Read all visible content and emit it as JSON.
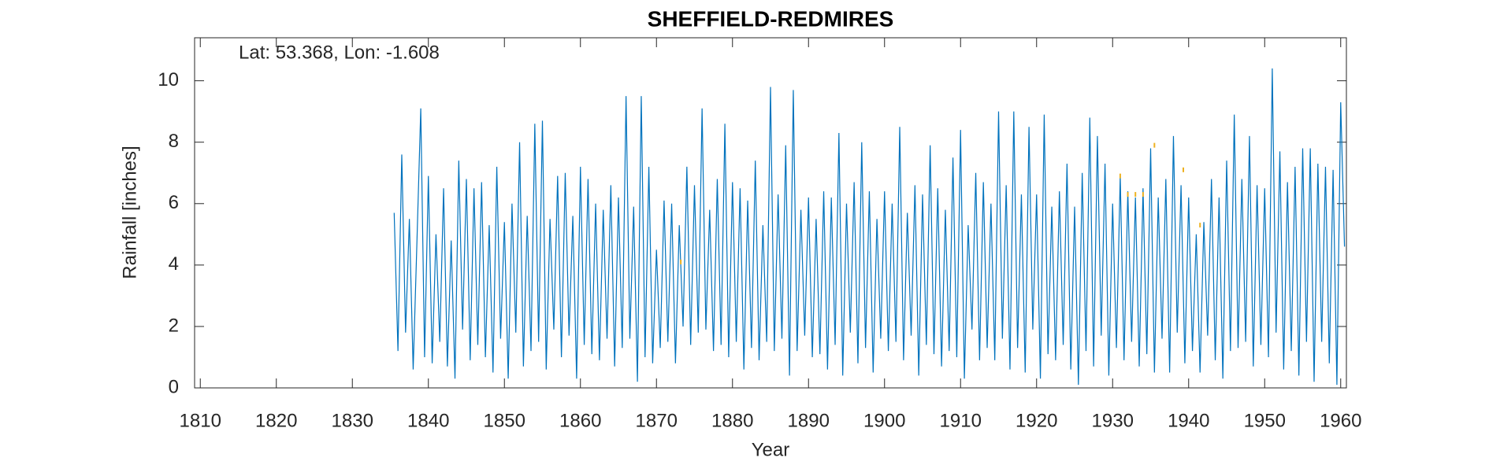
{
  "chart_data": {
    "type": "line",
    "title": "SHEFFIELD-REDMIRES",
    "annotation": "Lat: 53.368, Lon: -1.608",
    "xlabel": "Year",
    "ylabel": "Rainfall [inches]",
    "xlim": [
      1809.25,
      1960.75
    ],
    "ylim": [
      0,
      11.4
    ],
    "xticks": [
      1810,
      1820,
      1830,
      1840,
      1850,
      1860,
      1870,
      1880,
      1890,
      1900,
      1910,
      1920,
      1930,
      1940,
      1950,
      1960
    ],
    "yticks": [
      0,
      2,
      4,
      6,
      8,
      10
    ],
    "grid": false,
    "series": [
      {
        "color": "#0072bd",
        "x": [
          1835.5,
          1836,
          1836.5,
          1837,
          1837.5,
          1838,
          1838.5,
          1839,
          1839.5,
          1840,
          1840.5,
          1841,
          1841.5,
          1842,
          1842.5,
          1843,
          1843.5,
          1844,
          1844.5,
          1845,
          1845.5,
          1846,
          1846.5,
          1847,
          1847.5,
          1848,
          1848.5,
          1849,
          1849.5,
          1850,
          1850.5,
          1851,
          1851.5,
          1852,
          1852.5,
          1853,
          1853.5,
          1854,
          1854.5,
          1855,
          1855.5,
          1856,
          1856.5,
          1857,
          1857.5,
          1858,
          1858.5,
          1859,
          1859.5,
          1860,
          1860.5,
          1861,
          1861.5,
          1862,
          1862.5,
          1863,
          1863.5,
          1864,
          1864.5,
          1865,
          1865.5,
          1866,
          1866.5,
          1867,
          1867.5,
          1868,
          1868.5,
          1869,
          1869.5,
          1870,
          1870.5,
          1871,
          1871.5,
          1872,
          1872.5,
          1873,
          1873.5,
          1874,
          1874.5,
          1875,
          1875.5,
          1876,
          1876.5,
          1877,
          1877.5,
          1878,
          1878.5,
          1879,
          1879.5,
          1880,
          1880.5,
          1881,
          1881.5,
          1882,
          1882.5,
          1883,
          1883.5,
          1884,
          1884.5,
          1885,
          1885.5,
          1886,
          1886.5,
          1887,
          1887.5,
          1888,
          1888.5,
          1889,
          1889.5,
          1890,
          1890.5,
          1891,
          1891.5,
          1892,
          1892.5,
          1893,
          1893.5,
          1894,
          1894.5,
          1895,
          1895.5,
          1896,
          1896.5,
          1897,
          1897.5,
          1898,
          1898.5,
          1899,
          1899.5,
          1900,
          1900.5,
          1901,
          1901.5,
          1902,
          1902.5,
          1903,
          1903.5,
          1904,
          1904.5,
          1905,
          1905.5,
          1906,
          1906.5,
          1907,
          1907.5,
          1908,
          1908.5,
          1909,
          1909.5,
          1910,
          1910.5,
          1911,
          1911.5,
          1912,
          1912.5,
          1913,
          1913.5,
          1914,
          1914.5,
          1915,
          1915.5,
          1916,
          1916.5,
          1917,
          1917.5,
          1918,
          1918.5,
          1919,
          1919.5,
          1920,
          1920.5,
          1921,
          1921.5,
          1922,
          1922.5,
          1923,
          1923.5,
          1924,
          1924.5,
          1925,
          1925.5,
          1926,
          1926.5,
          1927,
          1927.5,
          1928,
          1928.5,
          1929,
          1929.5,
          1930,
          1930.5,
          1931,
          1931.5,
          1932,
          1932.5,
          1933,
          1933.5,
          1934,
          1934.5,
          1935,
          1935.5,
          1936,
          1936.5,
          1937,
          1937.5,
          1938,
          1938.5,
          1939,
          1939.5,
          1940,
          1940.5,
          1941,
          1941.5,
          1942,
          1942.5,
          1943,
          1943.5,
          1944,
          1944.5,
          1945,
          1945.5,
          1946,
          1946.5,
          1947,
          1947.5,
          1948,
          1948.5,
          1949,
          1949.5,
          1950,
          1950.5,
          1951,
          1951.5,
          1952,
          1952.5,
          1953,
          1953.5,
          1954,
          1954.5,
          1955,
          1955.5,
          1956,
          1956.5,
          1957,
          1957.5,
          1958,
          1958.5,
          1959,
          1959.5,
          1960,
          1960.5
        ],
        "values": [
          5.7,
          1.2,
          7.6,
          1.8,
          5.5,
          0.6,
          4.8,
          9.1,
          1.0,
          6.9,
          0.8,
          5.0,
          1.5,
          6.5,
          0.7,
          4.8,
          0.3,
          7.4,
          1.9,
          6.8,
          0.9,
          6.5,
          1.4,
          6.7,
          1.0,
          5.3,
          0.5,
          7.2,
          1.6,
          5.4,
          0.3,
          6.0,
          1.8,
          8.0,
          0.7,
          5.6,
          1.2,
          8.6,
          1.5,
          8.7,
          0.6,
          5.5,
          1.9,
          6.9,
          1.0,
          7.0,
          1.7,
          5.6,
          0.3,
          7.2,
          1.4,
          6.8,
          1.1,
          6.0,
          0.9,
          5.8,
          1.6,
          6.6,
          0.7,
          6.2,
          1.3,
          9.5,
          1.6,
          5.9,
          0.2,
          9.5,
          1.0,
          7.2,
          0.8,
          4.5,
          1.3,
          6.1,
          1.5,
          6.0,
          0.8,
          5.3,
          2.0,
          7.2,
          1.4,
          6.6,
          1.8,
          9.1,
          1.9,
          5.8,
          1.2,
          6.8,
          1.4,
          8.6,
          1.0,
          6.7,
          1.5,
          6.5,
          0.6,
          6.1,
          1.3,
          7.4,
          0.9,
          5.3,
          1.5,
          9.8,
          1.2,
          6.3,
          1.6,
          7.9,
          0.4,
          9.7,
          1.2,
          5.8,
          1.7,
          6.2,
          1.0,
          5.5,
          1.1,
          6.4,
          0.6,
          6.2,
          1.4,
          8.3,
          0.4,
          6.0,
          1.8,
          6.7,
          0.8,
          8.0,
          1.3,
          6.4,
          0.5,
          5.5,
          1.6,
          6.4,
          1.2,
          6.0,
          1.5,
          8.5,
          0.9,
          5.7,
          1.7,
          6.6,
          0.4,
          6.3,
          1.4,
          7.9,
          1.1,
          6.5,
          0.7,
          5.8,
          1.2,
          7.5,
          1.0,
          8.4,
          0.3,
          5.3,
          1.9,
          7.0,
          0.9,
          6.7,
          1.3,
          6.0,
          0.9,
          9.0,
          1.6,
          6.6,
          0.6,
          9.0,
          1.3,
          6.3,
          0.5,
          8.5,
          1.9,
          6.3,
          0.3,
          8.9,
          1.1,
          5.9,
          0.9,
          6.4,
          1.4,
          7.3,
          0.6,
          5.9,
          0.1,
          7.0,
          1.2,
          8.8,
          0.7,
          8.2,
          1.7,
          7.3,
          0.4,
          6.0,
          1.3,
          6.9,
          0.9,
          6.4,
          1.5,
          6.2,
          0.7,
          6.5,
          1.1,
          7.8,
          0.5,
          6.2,
          1.6,
          6.8,
          0.5,
          8.2,
          1.8,
          6.6,
          0.8,
          6.2,
          1.2,
          5.0,
          0.5,
          5.4,
          1.7,
          6.8,
          0.9,
          6.2,
          0.3,
          7.4,
          1.2,
          8.9,
          1.3,
          6.8,
          1.5,
          8.2,
          0.7,
          6.6,
          1.4,
          6.5,
          1.0,
          10.4,
          1.8,
          7.7,
          0.6,
          6.7,
          1.2,
          7.2,
          0.4,
          7.8,
          1.5,
          7.8,
          0.2,
          7.3,
          1.5,
          7.2,
          0.8,
          7.1,
          0.1,
          9.3,
          4.6
        ]
      },
      {
        "color": "#edb120",
        "x": [
          1873.2,
          1931,
          1932,
          1933,
          1934,
          1935.5,
          1939.3,
          1941.5
        ],
        "values": [
          4.1,
          6.9,
          6.3,
          6.3,
          6.3,
          7.9,
          7.1,
          5.3
        ],
        "marker": "dash"
      }
    ]
  }
}
